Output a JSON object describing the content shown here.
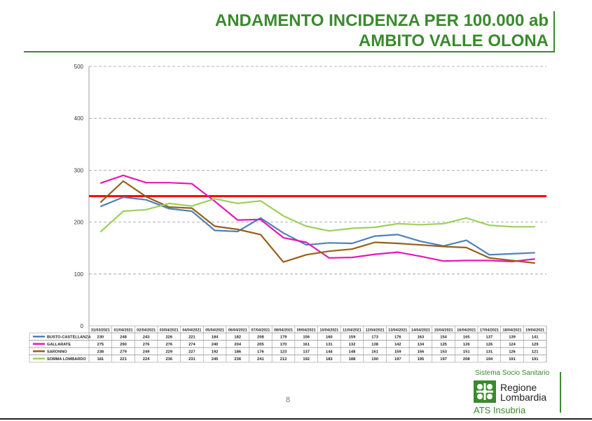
{
  "title_line1": "ANDAMENTO INCIDENZA PER 100.000 ab",
  "title_line2": "AMBITO VALLE OLONA",
  "page_number": "8",
  "logo": {
    "system_text": "Sistema Socio Sanitario",
    "region_line1": "Regione",
    "region_line2": "Lombardia",
    "agency": "ATS Insubria"
  },
  "chart_data": {
    "type": "line",
    "categories": [
      "31/03/2021",
      "01/04/2021",
      "02/04/2021",
      "03/04/2021",
      "04/04/2021",
      "05/04/2021",
      "06/04/2021",
      "07/04/2021",
      "08/04/2021",
      "09/04/2021",
      "10/04/2021",
      "11/04/2021",
      "12/04/2021",
      "13/04/2021",
      "14/04/2021",
      "15/04/2021",
      "16/04/2021",
      "17/04/2021",
      "18/04/2021",
      "19/04/2021"
    ],
    "series": [
      {
        "name": "BUSTO-CASTELLANZA",
        "color": "#4f81bd",
        "values": [
          230,
          248,
          243,
          226,
          221,
          184,
          182,
          208,
          179,
          156,
          160,
          159,
          173,
          176,
          163,
          154,
          165,
          137,
          139,
          141
        ]
      },
      {
        "name": "GALLARATE",
        "color": "#e619b3",
        "values": [
          275,
          290,
          276,
          276,
          274,
          240,
          204,
          205,
          170,
          161,
          131,
          132,
          138,
          142,
          134,
          125,
          126,
          126,
          124,
          129
        ]
      },
      {
        "name": "SARONNO",
        "color": "#946018",
        "values": [
          238,
          279,
          249,
          229,
          227,
          192,
          186,
          176,
          123,
          137,
          144,
          148,
          161,
          159,
          156,
          153,
          151,
          131,
          126,
          121
        ]
      },
      {
        "name": "SOMMA LOMBARDO",
        "color": "#9bd15a",
        "values": [
          181,
          221,
          224,
          236,
          231,
          245,
          236,
          241,
          212,
          192,
          183,
          188,
          190,
          197,
          195,
          197,
          208,
          194,
          191,
          191
        ]
      }
    ],
    "threshold": {
      "value": 250,
      "color": "#ff0000"
    },
    "ylim": [
      0,
      500
    ],
    "yticks": [
      0,
      100,
      200,
      300,
      400,
      500
    ],
    "grid": true,
    "legend": "table-below"
  }
}
